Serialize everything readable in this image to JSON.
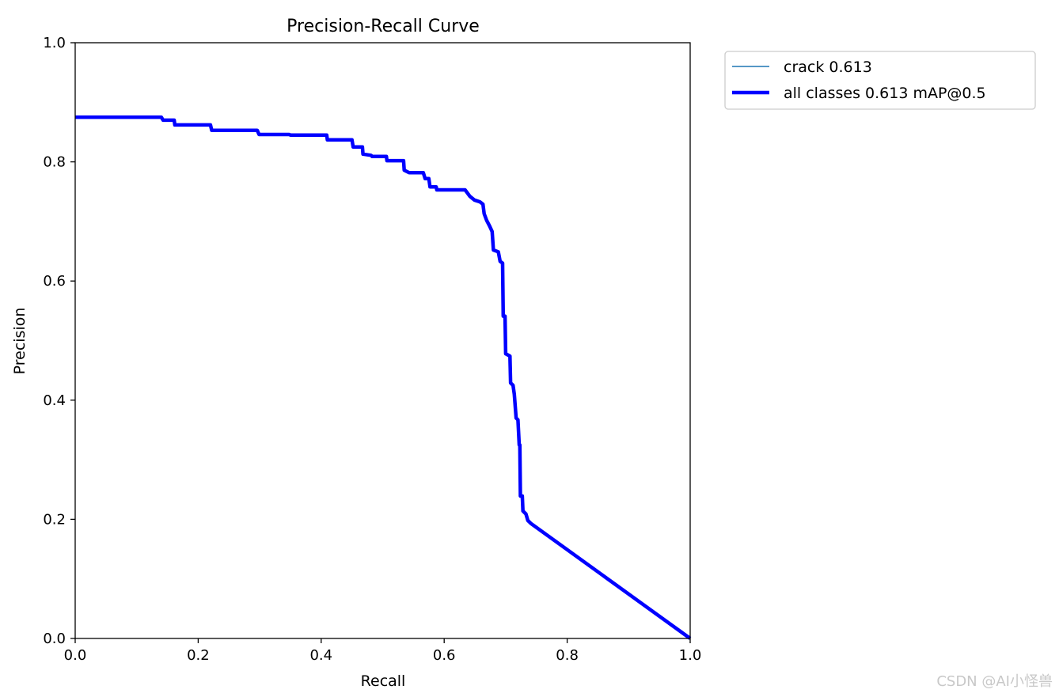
{
  "chart_data": {
    "type": "line",
    "title": "Precision-Recall Curve",
    "xlabel": "Recall",
    "ylabel": "Precision",
    "xlim": [
      0,
      1
    ],
    "ylim": [
      0,
      1
    ],
    "xticks": [
      "0.0",
      "0.2",
      "0.4",
      "0.6",
      "0.8",
      "1.0"
    ],
    "yticks": [
      "0.0",
      "0.2",
      "0.4",
      "0.6",
      "0.8",
      "1.0"
    ],
    "grid": false,
    "legend_position": "outside-top-right",
    "legend": [
      "crack 0.613",
      "all classes 0.613 mAP@0.5"
    ],
    "series": [
      {
        "name": "crack 0.613",
        "color": "#1f77b4",
        "style": "thin"
      },
      {
        "name": "all classes 0.613 mAP@0.5",
        "color": "#0000ff",
        "style": "thick",
        "x": [
          0,
          0.14,
          0.143,
          0.161,
          0.162,
          0.22,
          0.222,
          0.296,
          0.299,
          0.348,
          0.35,
          0.409,
          0.41,
          0.45,
          0.452,
          0.467,
          0.468,
          0.481,
          0.483,
          0.506,
          0.507,
          0.534,
          0.535,
          0.543,
          0.566,
          0.569,
          0.575,
          0.577,
          0.587,
          0.588,
          0.634,
          0.642,
          0.649,
          0.658,
          0.663,
          0.665,
          0.669,
          0.674,
          0.678,
          0.68,
          0.688,
          0.691,
          0.695,
          0.696,
          0.699,
          0.7,
          0.707,
          0.708,
          0.712,
          0.714,
          0.717,
          0.72,
          0.722,
          0.723,
          0.724,
          0.727,
          0.728,
          0.733,
          0.736,
          0.741,
          1.0
        ],
        "y": [
          0.875,
          0.875,
          0.87,
          0.87,
          0.862,
          0.862,
          0.853,
          0.853,
          0.846,
          0.846,
          0.845,
          0.845,
          0.837,
          0.837,
          0.825,
          0.825,
          0.813,
          0.811,
          0.809,
          0.809,
          0.802,
          0.802,
          0.786,
          0.782,
          0.782,
          0.772,
          0.772,
          0.758,
          0.758,
          0.753,
          0.753,
          0.742,
          0.736,
          0.733,
          0.729,
          0.713,
          0.702,
          0.692,
          0.683,
          0.652,
          0.649,
          0.633,
          0.63,
          0.541,
          0.541,
          0.478,
          0.474,
          0.429,
          0.425,
          0.41,
          0.37,
          0.367,
          0.325,
          0.325,
          0.239,
          0.239,
          0.214,
          0.209,
          0.198,
          0.193,
          0.0
        ]
      }
    ]
  },
  "watermark": "CSDN @AI小怪兽"
}
